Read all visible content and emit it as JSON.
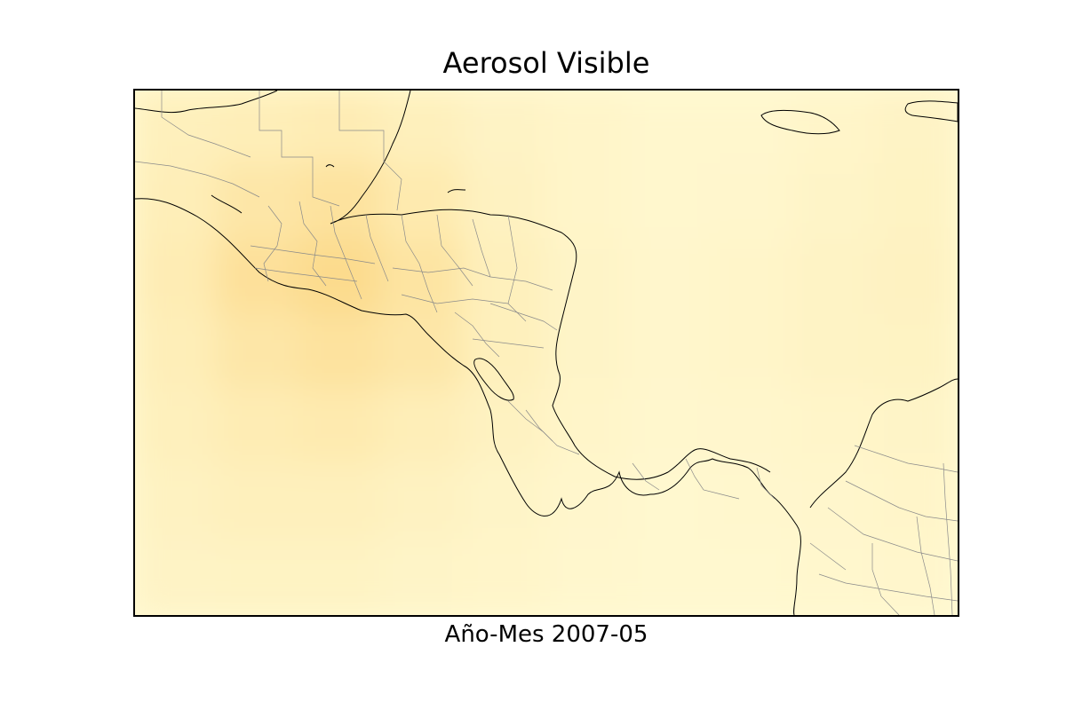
{
  "title": "Aerosol Visible",
  "xlabel": "Año-Mes 2007-05",
  "colors": {
    "background": "#ffffff",
    "sea_light": "#fffbd6",
    "haze_medium": "#fff0b8",
    "haze_dark": "#fcd98a",
    "coastline": "#000000",
    "borders": "#8a8a8a"
  },
  "chart_data": {
    "type": "heatmap",
    "title": "Aerosol Visible",
    "xlabel": "Año-Mes 2007-05",
    "ylabel": "",
    "colormap": "light yellow to orange",
    "colorbar": "none",
    "grid": false,
    "legend": "none",
    "relative_intensity_rows_west_to_east": [
      [
        0.3,
        0.35,
        0.4,
        0.3,
        0.2,
        0.15,
        0.1,
        0.1,
        0.15,
        0.2
      ],
      [
        0.35,
        0.55,
        0.65,
        0.45,
        0.25,
        0.15,
        0.1,
        0.12,
        0.18,
        0.22
      ],
      [
        0.4,
        0.7,
        0.85,
        0.6,
        0.3,
        0.18,
        0.12,
        0.15,
        0.2,
        0.25
      ],
      [
        0.35,
        0.55,
        0.65,
        0.55,
        0.3,
        0.18,
        0.12,
        0.15,
        0.2,
        0.22
      ],
      [
        0.3,
        0.4,
        0.45,
        0.35,
        0.25,
        0.15,
        0.1,
        0.12,
        0.15,
        0.18
      ],
      [
        0.25,
        0.3,
        0.3,
        0.25,
        0.18,
        0.12,
        0.08,
        0.1,
        0.12,
        0.15
      ],
      [
        0.2,
        0.22,
        0.22,
        0.18,
        0.15,
        0.1,
        0.08,
        0.08,
        0.1,
        0.12
      ]
    ]
  }
}
